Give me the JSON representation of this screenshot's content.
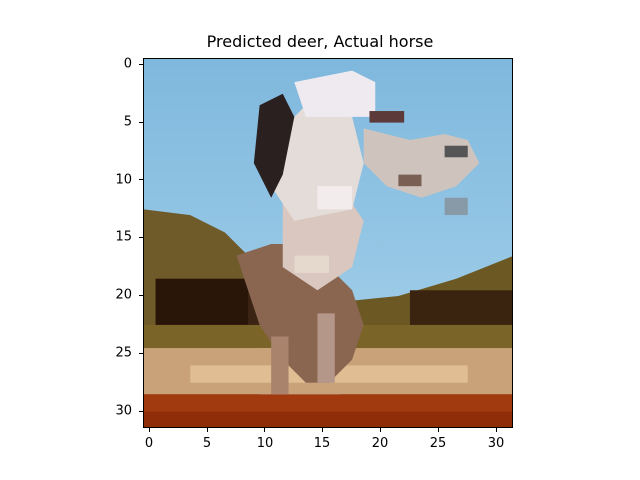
{
  "figure": {
    "title": "Predicted deer, Actual horse"
  },
  "image": {
    "x_ticks": [
      "0",
      "5",
      "10",
      "15",
      "20",
      "25",
      "30"
    ],
    "y_ticks": [
      "0",
      "5",
      "10",
      "15",
      "20",
      "25",
      "30"
    ],
    "pixel_grid": "32x32",
    "colors": {
      "sky": "#8fc6e6",
      "sky_light": "#b7d8ea",
      "horse_white": "#e6e1de",
      "horse_shadow": "#a89086",
      "dark_mane": "#2a2020",
      "foliage_olive": "#7b6428",
      "foliage_dark": "#2a1509",
      "sand": "#d8b48a",
      "ground_red": "#a23a10"
    }
  }
}
